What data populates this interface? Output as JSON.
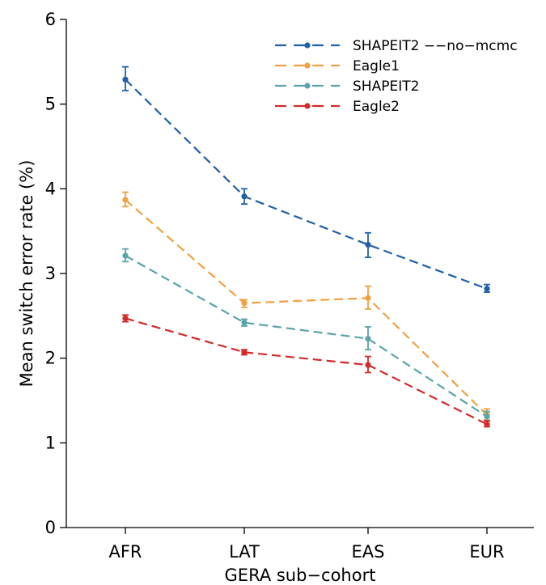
{
  "chart_data": {
    "type": "line",
    "xlabel": "GERA sub−cohort",
    "ylabel": "Mean switch error rate (%)",
    "ylim": [
      0,
      6
    ],
    "yticks": [
      "0",
      "1",
      "2",
      "3",
      "4",
      "5",
      "6"
    ],
    "categories": [
      "AFR",
      "LAT",
      "EAS",
      "EUR"
    ],
    "grid": false,
    "legend_position": "top-right",
    "series": [
      {
        "name": "SHAPEIT2 −−no−mcmc",
        "color": "#1f5fa8",
        "values": [
          5.29,
          3.91,
          3.34,
          2.82
        ],
        "err_low": [
          5.16,
          3.82,
          3.19,
          2.78
        ],
        "err_high": [
          5.44,
          4.0,
          3.48,
          2.87
        ]
      },
      {
        "name": "Eagle1",
        "color": "#f0a040",
        "values": [
          3.87,
          2.65,
          2.71,
          1.33
        ],
        "err_low": [
          3.79,
          2.6,
          2.58,
          1.27
        ],
        "err_high": [
          3.96,
          2.69,
          2.85,
          1.4
        ]
      },
      {
        "name": "SHAPEIT2",
        "color": "#5aa3aa",
        "values": [
          3.21,
          2.42,
          2.23,
          1.31
        ],
        "err_low": [
          3.14,
          2.38,
          2.1,
          1.26
        ],
        "err_high": [
          3.29,
          2.46,
          2.37,
          1.37
        ]
      },
      {
        "name": "Eagle2",
        "color": "#d42a2a",
        "values": [
          2.47,
          2.07,
          1.92,
          1.22
        ],
        "err_low": [
          2.43,
          2.04,
          1.83,
          1.19
        ],
        "err_high": [
          2.51,
          2.1,
          2.02,
          1.26
        ]
      }
    ]
  }
}
